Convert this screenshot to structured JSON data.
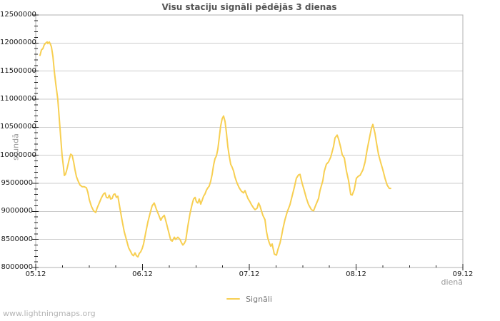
{
  "watermark": "www.lightningmaps.org",
  "chart_data": {
    "type": "line",
    "title": "Visu staciju signāli pēdējās 3 dienas",
    "xlabel": "dienā",
    "ylabel": "stundā",
    "legend_label": "Signāli",
    "legend_position": "bottom-center",
    "grid": "horizontal-only",
    "xlim": [
      0,
      4
    ],
    "ylim": [
      8000000,
      12500000
    ],
    "x_tick_labels": [
      "05.12",
      "06.12",
      "07.12",
      "08.12",
      "09.12"
    ],
    "x_major_ticks": [
      0,
      1,
      2,
      3,
      4
    ],
    "x_minor_step": 0.25,
    "y_major_ticks": [
      8000000,
      8500000,
      9000000,
      9500000,
      10000000,
      10500000,
      11000000,
      11500000,
      12000000,
      12500000
    ],
    "y_minor_step": 100000,
    "colors": {
      "line": "#f7cf52",
      "grid": "#cccccc",
      "border": "#b0b0b0",
      "tick": "#222222",
      "tick_label": "#1a1a1a",
      "title": "#555555",
      "axis_label": "#979797",
      "legend_label": "#757575",
      "watermark": "#b4b4b4",
      "background": "#ffffff"
    },
    "series": [
      {
        "name": "Signāli",
        "x_unit": "days since 05.12",
        "y_unit": "signals per hour",
        "points": [
          [
            0.04,
            11780000
          ],
          [
            0.054,
            11880000
          ],
          [
            0.067,
            11900000
          ],
          [
            0.08,
            11970000
          ],
          [
            0.094,
            12000000
          ],
          [
            0.107,
            12020000
          ],
          [
            0.114,
            11990000
          ],
          [
            0.127,
            12020000
          ],
          [
            0.14,
            11970000
          ],
          [
            0.147,
            11930000
          ],
          [
            0.161,
            11760000
          ],
          [
            0.174,
            11500000
          ],
          [
            0.187,
            11280000
          ],
          [
            0.207,
            11000000
          ],
          [
            0.227,
            10500000
          ],
          [
            0.247,
            10000000
          ],
          [
            0.258,
            9820000
          ],
          [
            0.268,
            9640000
          ],
          [
            0.278,
            9660000
          ],
          [
            0.288,
            9720000
          ],
          [
            0.301,
            9820000
          ],
          [
            0.314,
            9930000
          ],
          [
            0.328,
            10020000
          ],
          [
            0.341,
            10000000
          ],
          [
            0.355,
            9880000
          ],
          [
            0.368,
            9740000
          ],
          [
            0.381,
            9620000
          ],
          [
            0.395,
            9550000
          ],
          [
            0.415,
            9470000
          ],
          [
            0.435,
            9440000
          ],
          [
            0.455,
            9440000
          ],
          [
            0.475,
            9420000
          ],
          [
            0.488,
            9340000
          ],
          [
            0.502,
            9210000
          ],
          [
            0.522,
            9090000
          ],
          [
            0.542,
            9010000
          ],
          [
            0.562,
            8980000
          ],
          [
            0.575,
            9060000
          ],
          [
            0.595,
            9150000
          ],
          [
            0.615,
            9240000
          ],
          [
            0.635,
            9310000
          ],
          [
            0.649,
            9330000
          ],
          [
            0.662,
            9250000
          ],
          [
            0.676,
            9240000
          ],
          [
            0.689,
            9290000
          ],
          [
            0.702,
            9220000
          ],
          [
            0.716,
            9230000
          ],
          [
            0.729,
            9300000
          ],
          [
            0.742,
            9310000
          ],
          [
            0.756,
            9250000
          ],
          [
            0.769,
            9270000
          ],
          [
            0.789,
            9050000
          ],
          [
            0.809,
            8840000
          ],
          [
            0.829,
            8640000
          ],
          [
            0.849,
            8500000
          ],
          [
            0.87,
            8350000
          ],
          [
            0.89,
            8280000
          ],
          [
            0.903,
            8230000
          ],
          [
            0.916,
            8210000
          ],
          [
            0.93,
            8260000
          ],
          [
            0.943,
            8210000
          ],
          [
            0.957,
            8190000
          ],
          [
            0.97,
            8250000
          ],
          [
            0.983,
            8280000
          ],
          [
            0.997,
            8340000
          ],
          [
            1.01,
            8420000
          ],
          [
            1.03,
            8620000
          ],
          [
            1.05,
            8810000
          ],
          [
            1.07,
            8960000
          ],
          [
            1.09,
            9100000
          ],
          [
            1.11,
            9150000
          ],
          [
            1.13,
            9040000
          ],
          [
            1.151,
            8940000
          ],
          [
            1.171,
            8840000
          ],
          [
            1.184,
            8890000
          ],
          [
            1.204,
            8930000
          ],
          [
            1.224,
            8790000
          ],
          [
            1.244,
            8640000
          ],
          [
            1.264,
            8490000
          ],
          [
            1.278,
            8470000
          ],
          [
            1.298,
            8540000
          ],
          [
            1.311,
            8500000
          ],
          [
            1.331,
            8540000
          ],
          [
            1.351,
            8500000
          ],
          [
            1.365,
            8440000
          ],
          [
            1.378,
            8400000
          ],
          [
            1.391,
            8430000
          ],
          [
            1.405,
            8480000
          ],
          [
            1.425,
            8740000
          ],
          [
            1.445,
            8960000
          ],
          [
            1.465,
            9130000
          ],
          [
            1.478,
            9220000
          ],
          [
            1.492,
            9250000
          ],
          [
            1.505,
            9170000
          ],
          [
            1.518,
            9150000
          ],
          [
            1.532,
            9220000
          ],
          [
            1.545,
            9130000
          ],
          [
            1.559,
            9200000
          ],
          [
            1.572,
            9270000
          ],
          [
            1.585,
            9310000
          ],
          [
            1.599,
            9380000
          ],
          [
            1.612,
            9420000
          ],
          [
            1.625,
            9450000
          ],
          [
            1.639,
            9540000
          ],
          [
            1.652,
            9660000
          ],
          [
            1.666,
            9830000
          ],
          [
            1.679,
            9940000
          ],
          [
            1.692,
            9990000
          ],
          [
            1.706,
            10110000
          ],
          [
            1.719,
            10320000
          ],
          [
            1.732,
            10520000
          ],
          [
            1.746,
            10650000
          ],
          [
            1.759,
            10700000
          ],
          [
            1.773,
            10600000
          ],
          [
            1.786,
            10400000
          ],
          [
            1.799,
            10150000
          ],
          [
            1.813,
            9980000
          ],
          [
            1.826,
            9840000
          ],
          [
            1.839,
            9790000
          ],
          [
            1.853,
            9720000
          ],
          [
            1.866,
            9610000
          ],
          [
            1.886,
            9500000
          ],
          [
            1.906,
            9420000
          ],
          [
            1.926,
            9360000
          ],
          [
            1.946,
            9330000
          ],
          [
            1.96,
            9370000
          ],
          [
            1.973,
            9300000
          ],
          [
            1.987,
            9230000
          ],
          [
            2.007,
            9170000
          ],
          [
            2.02,
            9120000
          ],
          [
            2.04,
            9060000
          ],
          [
            2.054,
            9030000
          ],
          [
            2.074,
            9060000
          ],
          [
            2.087,
            9150000
          ],
          [
            2.1,
            9100000
          ],
          [
            2.114,
            9010000
          ],
          [
            2.127,
            8930000
          ],
          [
            2.147,
            8850000
          ],
          [
            2.161,
            8640000
          ],
          [
            2.174,
            8520000
          ],
          [
            2.187,
            8440000
          ],
          [
            2.201,
            8380000
          ],
          [
            2.214,
            8420000
          ],
          [
            2.234,
            8240000
          ],
          [
            2.254,
            8220000
          ],
          [
            2.268,
            8320000
          ],
          [
            2.288,
            8440000
          ],
          [
            2.301,
            8550000
          ],
          [
            2.314,
            8680000
          ],
          [
            2.334,
            8850000
          ],
          [
            2.355,
            8990000
          ],
          [
            2.381,
            9120000
          ],
          [
            2.401,
            9270000
          ],
          [
            2.421,
            9420000
          ],
          [
            2.441,
            9590000
          ],
          [
            2.461,
            9650000
          ],
          [
            2.475,
            9660000
          ],
          [
            2.495,
            9500000
          ],
          [
            2.515,
            9370000
          ],
          [
            2.535,
            9230000
          ],
          [
            2.555,
            9120000
          ],
          [
            2.582,
            9030000
          ],
          [
            2.602,
            9010000
          ],
          [
            2.622,
            9110000
          ],
          [
            2.649,
            9230000
          ],
          [
            2.662,
            9370000
          ],
          [
            2.689,
            9550000
          ],
          [
            2.702,
            9710000
          ],
          [
            2.722,
            9840000
          ],
          [
            2.742,
            9880000
          ],
          [
            2.763,
            9970000
          ],
          [
            2.789,
            10160000
          ],
          [
            2.803,
            10310000
          ],
          [
            2.823,
            10360000
          ],
          [
            2.836,
            10290000
          ],
          [
            2.856,
            10140000
          ],
          [
            2.87,
            10010000
          ],
          [
            2.89,
            9950000
          ],
          [
            2.91,
            9720000
          ],
          [
            2.93,
            9550000
          ],
          [
            2.95,
            9300000
          ],
          [
            2.963,
            9290000
          ],
          [
            2.983,
            9390000
          ],
          [
            3.003,
            9590000
          ],
          [
            3.023,
            9630000
          ],
          [
            3.037,
            9640000
          ],
          [
            3.064,
            9740000
          ],
          [
            3.084,
            9880000
          ],
          [
            3.104,
            10100000
          ],
          [
            3.13,
            10350000
          ],
          [
            3.144,
            10480000
          ],
          [
            3.157,
            10550000
          ],
          [
            3.177,
            10390000
          ],
          [
            3.191,
            10220000
          ],
          [
            3.211,
            10010000
          ],
          [
            3.231,
            9870000
          ],
          [
            3.251,
            9740000
          ],
          [
            3.271,
            9590000
          ],
          [
            3.291,
            9470000
          ],
          [
            3.311,
            9410000
          ],
          [
            3.324,
            9410000
          ]
        ]
      }
    ]
  }
}
